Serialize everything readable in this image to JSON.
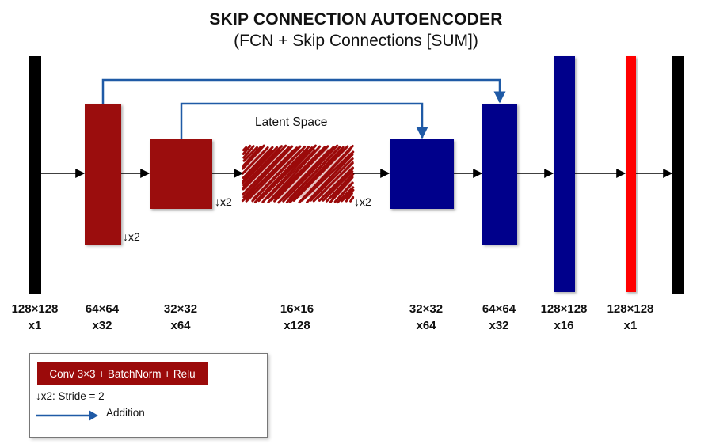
{
  "title": "SKIP CONNECTION AUTOENCODER",
  "subtitle": "(FCN + Skip Connections [SUM])",
  "latent_label": "Latent Space",
  "stride_marker": "↓x2",
  "colors": {
    "encoder": "#9b0a0a",
    "decoder": "#00008b",
    "output_layer": "#ff0000",
    "io_bar": "#000000",
    "skip_arrow": "#1f5aa6",
    "flow_arrow": "#000000"
  },
  "layers": [
    {
      "size": "128×128",
      "channels": "x1"
    },
    {
      "size": "64×64",
      "channels": "x32"
    },
    {
      "size": "32×32",
      "channels": "x64"
    },
    {
      "size": "16×16",
      "channels": "x128"
    },
    {
      "size": "32×32",
      "channels": "x64"
    },
    {
      "size": "64×64",
      "channels": "x32"
    },
    {
      "size": "128×128",
      "channels": "x16"
    },
    {
      "size": "128×128",
      "channels": "x1"
    }
  ],
  "legend": {
    "block_label": "Conv 3×3 + BatchNorm + Relu",
    "stride_label": "↓x2: Stride = 2",
    "addition_label": "Addition"
  }
}
